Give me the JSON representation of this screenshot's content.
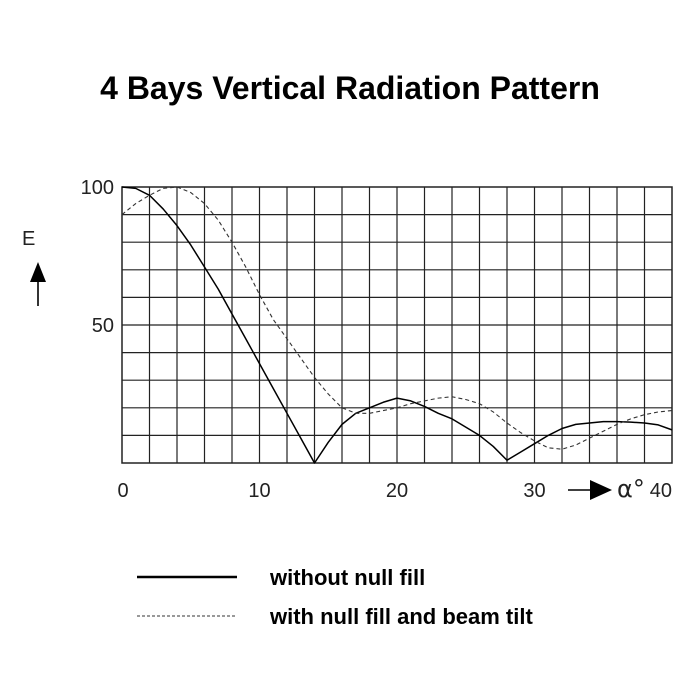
{
  "chart_data": {
    "type": "line",
    "title": "4 Bays Vertical Radiation Pattern",
    "ylabel": "E",
    "xlabel_symbol": "α°",
    "xlim": [
      0,
      40
    ],
    "ylim": [
      0,
      100
    ],
    "x_ticks": [
      "0",
      "10",
      "20",
      "30",
      "40"
    ],
    "y_ticks": [
      "50",
      "100"
    ],
    "grid": true,
    "legend_position": "bottom",
    "series": [
      {
        "name": "without null fill",
        "style": "solid",
        "color": "#000000",
        "x": [
          0,
          1,
          2,
          3,
          4,
          5,
          6,
          7,
          8,
          9,
          10,
          11,
          12,
          13,
          14,
          15,
          16,
          17,
          18,
          19,
          20,
          21,
          22,
          23,
          24,
          25,
          26,
          27,
          28,
          29,
          30,
          31,
          32,
          33,
          34,
          35,
          36,
          37,
          38,
          39,
          40
        ],
        "values": [
          100,
          99.5,
          97,
          92,
          86,
          79,
          71,
          63,
          54,
          45,
          36,
          27,
          18,
          9,
          0,
          7.5,
          14,
          18,
          20,
          22,
          23.5,
          22.5,
          20.5,
          18,
          16,
          13,
          10,
          6,
          1,
          4,
          7,
          10,
          12.5,
          14,
          14.5,
          15,
          15,
          14.8,
          14.5,
          13.8,
          12
        ]
      },
      {
        "name": "with null fill and beam tilt",
        "style": "dashed",
        "color": "#333333",
        "x": [
          0,
          1,
          2,
          3,
          4,
          5,
          6,
          7,
          8,
          9,
          10,
          11,
          12,
          13,
          14,
          15,
          16,
          17,
          18,
          19,
          20,
          21,
          22,
          23,
          24,
          25,
          26,
          27,
          28,
          29,
          30,
          31,
          32,
          33,
          34,
          35,
          36,
          37,
          38,
          39,
          40
        ],
        "values": [
          90,
          94,
          97,
          99.5,
          100,
          98,
          94,
          88,
          80,
          71,
          61,
          52,
          45,
          38,
          31,
          25,
          20,
          18,
          18,
          19,
          20,
          21.5,
          22.5,
          23.5,
          24,
          23,
          21.5,
          18.5,
          14.5,
          11,
          8,
          5.5,
          5,
          6.5,
          9,
          11.5,
          14,
          16,
          17.5,
          18.5,
          19
        ]
      }
    ]
  }
}
